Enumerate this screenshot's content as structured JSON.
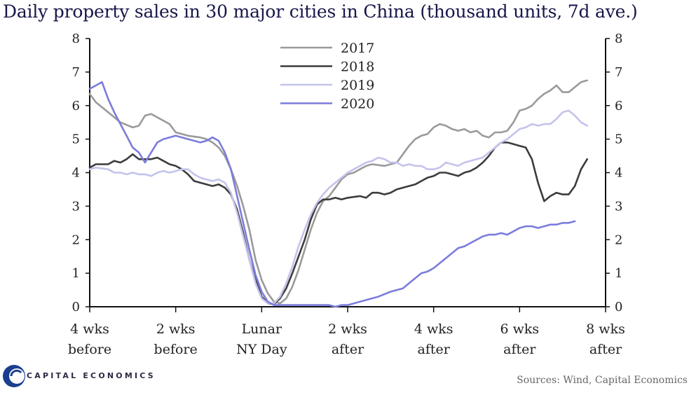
{
  "chart_data": {
    "type": "line",
    "title": "Daily property sales in 30 major cities in China (thousand units, 7d ave.)",
    "ylim": [
      0,
      8
    ],
    "yticks": [
      "0",
      "1",
      "2",
      "3",
      "4",
      "5",
      "6",
      "7",
      "8"
    ],
    "xlim": [
      -28,
      56
    ],
    "xticks": [
      {
        "x": -28,
        "line1": "4 wks",
        "line2": "before"
      },
      {
        "x": -14,
        "line1": "2 wks",
        "line2": "before"
      },
      {
        "x": 0,
        "line1": "Lunar",
        "line2": "NY Day"
      },
      {
        "x": 14,
        "line1": "2 wks",
        "line2": "after"
      },
      {
        "x": 28,
        "line1": "4 wks",
        "line2": "after"
      },
      {
        "x": 42,
        "line1": "6 wks",
        "line2": "after"
      },
      {
        "x": 56,
        "line1": "8 wks",
        "line2": "after"
      }
    ],
    "grid": false,
    "legend_position": "top-center",
    "series": [
      {
        "name": "2017",
        "color": "#9a9a9a",
        "points": [
          [
            -28,
            6.35
          ],
          [
            -27,
            6.1
          ],
          [
            -25,
            5.8
          ],
          [
            -23,
            5.5
          ],
          [
            -21,
            5.35
          ],
          [
            -20,
            5.4
          ],
          [
            -19,
            5.7
          ],
          [
            -18,
            5.75
          ],
          [
            -17,
            5.65
          ],
          [
            -15,
            5.45
          ],
          [
            -14,
            5.2
          ],
          [
            -12,
            5.1
          ],
          [
            -10,
            5.05
          ],
          [
            -9,
            5.0
          ],
          [
            -8,
            4.9
          ],
          [
            -7,
            4.75
          ],
          [
            -6,
            4.5
          ],
          [
            -5,
            4.1
          ],
          [
            -4,
            3.6
          ],
          [
            -3,
            3.0
          ],
          [
            -2,
            2.3
          ],
          [
            -1,
            1.4
          ],
          [
            0,
            0.8
          ],
          [
            1,
            0.4
          ],
          [
            2,
            0.15
          ],
          [
            3,
            0.1
          ],
          [
            4,
            0.25
          ],
          [
            5,
            0.6
          ],
          [
            6,
            1.1
          ],
          [
            7,
            1.7
          ],
          [
            8,
            2.3
          ],
          [
            9,
            2.8
          ],
          [
            10,
            3.15
          ],
          [
            11,
            3.3
          ],
          [
            12,
            3.55
          ],
          [
            13,
            3.8
          ],
          [
            14,
            3.95
          ],
          [
            15,
            4.0
          ],
          [
            16,
            4.1
          ],
          [
            17,
            4.2
          ],
          [
            18,
            4.25
          ],
          [
            20,
            4.2
          ],
          [
            22,
            4.3
          ],
          [
            23,
            4.55
          ],
          [
            24,
            4.8
          ],
          [
            25,
            5.0
          ],
          [
            26,
            5.1
          ],
          [
            27,
            5.15
          ],
          [
            28,
            5.35
          ],
          [
            29,
            5.45
          ],
          [
            30,
            5.4
          ],
          [
            31,
            5.3
          ],
          [
            32,
            5.25
          ],
          [
            33,
            5.3
          ],
          [
            34,
            5.2
          ],
          [
            35,
            5.25
          ],
          [
            36,
            5.1
          ],
          [
            37,
            5.05
          ],
          [
            38,
            5.2
          ],
          [
            39,
            5.2
          ],
          [
            40,
            5.25
          ],
          [
            41,
            5.5
          ],
          [
            42,
            5.85
          ],
          [
            43,
            5.9
          ],
          [
            44,
            6.0
          ],
          [
            45,
            6.2
          ],
          [
            46,
            6.35
          ],
          [
            47,
            6.45
          ],
          [
            48,
            6.6
          ],
          [
            49,
            6.4
          ],
          [
            50,
            6.4
          ],
          [
            51,
            6.55
          ],
          [
            52,
            6.7
          ],
          [
            53,
            6.75
          ]
        ]
      },
      {
        "name": "2018",
        "color": "#3c3c3c",
        "points": [
          [
            -28,
            4.15
          ],
          [
            -27,
            4.25
          ],
          [
            -25,
            4.25
          ],
          [
            -24,
            4.35
          ],
          [
            -23,
            4.3
          ],
          [
            -22,
            4.4
          ],
          [
            -21,
            4.55
          ],
          [
            -20,
            4.4
          ],
          [
            -19,
            4.4
          ],
          [
            -18,
            4.4
          ],
          [
            -17,
            4.45
          ],
          [
            -16,
            4.35
          ],
          [
            -15,
            4.25
          ],
          [
            -14,
            4.2
          ],
          [
            -13,
            4.1
          ],
          [
            -12,
            3.95
          ],
          [
            -11,
            3.75
          ],
          [
            -10,
            3.7
          ],
          [
            -9,
            3.65
          ],
          [
            -8,
            3.6
          ],
          [
            -7,
            3.65
          ],
          [
            -6,
            3.55
          ],
          [
            -5,
            3.35
          ],
          [
            -4,
            2.9
          ],
          [
            -3,
            2.2
          ],
          [
            -2,
            1.4
          ],
          [
            -1,
            0.8
          ],
          [
            0,
            0.3
          ],
          [
            1,
            0.1
          ],
          [
            2,
            0.08
          ],
          [
            3,
            0.25
          ],
          [
            4,
            0.55
          ],
          [
            5,
            1.0
          ],
          [
            6,
            1.5
          ],
          [
            7,
            2.0
          ],
          [
            8,
            2.6
          ],
          [
            9,
            3.05
          ],
          [
            10,
            3.2
          ],
          [
            11,
            3.2
          ],
          [
            12,
            3.25
          ],
          [
            13,
            3.2
          ],
          [
            14,
            3.25
          ],
          [
            16,
            3.3
          ],
          [
            17,
            3.25
          ],
          [
            18,
            3.4
          ],
          [
            19,
            3.4
          ],
          [
            20,
            3.35
          ],
          [
            21,
            3.4
          ],
          [
            22,
            3.5
          ],
          [
            23,
            3.55
          ],
          [
            24,
            3.6
          ],
          [
            25,
            3.65
          ],
          [
            26,
            3.75
          ],
          [
            27,
            3.85
          ],
          [
            28,
            3.9
          ],
          [
            29,
            4.0
          ],
          [
            30,
            4.0
          ],
          [
            31,
            3.95
          ],
          [
            32,
            3.9
          ],
          [
            33,
            4.0
          ],
          [
            34,
            4.05
          ],
          [
            35,
            4.15
          ],
          [
            36,
            4.3
          ],
          [
            37,
            4.5
          ],
          [
            38,
            4.75
          ],
          [
            39,
            4.9
          ],
          [
            40,
            4.9
          ],
          [
            41,
            4.85
          ],
          [
            42,
            4.8
          ],
          [
            43,
            4.75
          ],
          [
            44,
            4.4
          ],
          [
            45,
            3.7
          ],
          [
            46,
            3.15
          ],
          [
            47,
            3.3
          ],
          [
            48,
            3.4
          ],
          [
            49,
            3.35
          ],
          [
            50,
            3.35
          ],
          [
            51,
            3.6
          ],
          [
            52,
            4.1
          ],
          [
            53,
            4.4
          ]
        ]
      },
      {
        "name": "2019",
        "color": "#c3c3ec",
        "points": [
          [
            -28,
            4.1
          ],
          [
            -27,
            4.15
          ],
          [
            -25,
            4.1
          ],
          [
            -24,
            4.0
          ],
          [
            -23,
            4.0
          ],
          [
            -22,
            3.95
          ],
          [
            -21,
            4.0
          ],
          [
            -20,
            3.95
          ],
          [
            -19,
            3.95
          ],
          [
            -18,
            3.9
          ],
          [
            -17,
            4.0
          ],
          [
            -16,
            4.05
          ],
          [
            -15,
            4.0
          ],
          [
            -14,
            4.05
          ],
          [
            -13,
            4.1
          ],
          [
            -12,
            4.1
          ],
          [
            -11,
            3.95
          ],
          [
            -10,
            3.85
          ],
          [
            -9,
            3.8
          ],
          [
            -8,
            3.75
          ],
          [
            -7,
            3.8
          ],
          [
            -6,
            3.7
          ],
          [
            -5,
            3.4
          ],
          [
            -4,
            2.8
          ],
          [
            -3,
            2.1
          ],
          [
            -2,
            1.4
          ],
          [
            -1,
            0.7
          ],
          [
            0,
            0.25
          ],
          [
            1,
            0.1
          ],
          [
            2,
            0.1
          ],
          [
            3,
            0.3
          ],
          [
            4,
            0.7
          ],
          [
            5,
            1.2
          ],
          [
            6,
            1.8
          ],
          [
            7,
            2.3
          ],
          [
            8,
            2.75
          ],
          [
            9,
            3.1
          ],
          [
            10,
            3.35
          ],
          [
            11,
            3.55
          ],
          [
            12,
            3.7
          ],
          [
            13,
            3.85
          ],
          [
            14,
            4.0
          ],
          [
            15,
            4.1
          ],
          [
            16,
            4.2
          ],
          [
            17,
            4.3
          ],
          [
            18,
            4.35
          ],
          [
            19,
            4.45
          ],
          [
            20,
            4.4
          ],
          [
            21,
            4.3
          ],
          [
            22,
            4.3
          ],
          [
            23,
            4.2
          ],
          [
            24,
            4.25
          ],
          [
            25,
            4.2
          ],
          [
            26,
            4.2
          ],
          [
            27,
            4.1
          ],
          [
            28,
            4.1
          ],
          [
            29,
            4.15
          ],
          [
            30,
            4.3
          ],
          [
            31,
            4.25
          ],
          [
            32,
            4.2
          ],
          [
            33,
            4.3
          ],
          [
            34,
            4.35
          ],
          [
            35,
            4.4
          ],
          [
            36,
            4.45
          ],
          [
            37,
            4.6
          ],
          [
            38,
            4.75
          ],
          [
            39,
            4.9
          ],
          [
            40,
            5.0
          ],
          [
            41,
            5.15
          ],
          [
            42,
            5.3
          ],
          [
            43,
            5.35
          ],
          [
            44,
            5.45
          ],
          [
            45,
            5.4
          ],
          [
            46,
            5.45
          ],
          [
            47,
            5.45
          ],
          [
            48,
            5.6
          ],
          [
            49,
            5.8
          ],
          [
            50,
            5.85
          ],
          [
            51,
            5.7
          ],
          [
            52,
            5.5
          ],
          [
            53,
            5.4
          ]
        ]
      },
      {
        "name": "2020",
        "color": "#7c7cdc",
        "points": [
          [
            -28,
            6.5
          ],
          [
            -27,
            6.6
          ],
          [
            -26,
            6.7
          ],
          [
            -25,
            6.2
          ],
          [
            -24,
            5.8
          ],
          [
            -23,
            5.45
          ],
          [
            -22,
            5.1
          ],
          [
            -21,
            4.75
          ],
          [
            -20,
            4.6
          ],
          [
            -19,
            4.3
          ],
          [
            -18,
            4.6
          ],
          [
            -17,
            4.9
          ],
          [
            -16,
            5.0
          ],
          [
            -15,
            5.05
          ],
          [
            -14,
            5.1
          ],
          [
            -13,
            5.05
          ],
          [
            -12,
            5.0
          ],
          [
            -11,
            4.95
          ],
          [
            -10,
            4.9
          ],
          [
            -9,
            4.95
          ],
          [
            -8,
            5.05
          ],
          [
            -7,
            4.95
          ],
          [
            -6,
            4.6
          ],
          [
            -5,
            4.1
          ],
          [
            -4,
            3.3
          ],
          [
            -3,
            2.5
          ],
          [
            -2,
            1.7
          ],
          [
            -1,
            0.95
          ],
          [
            0,
            0.45
          ],
          [
            1,
            0.15
          ],
          [
            2,
            0.05
          ],
          [
            3,
            0.05
          ],
          [
            5,
            0.05
          ],
          [
            7,
            0.05
          ],
          [
            9,
            0.05
          ],
          [
            11,
            0.05
          ],
          [
            12,
            0.0
          ],
          [
            13,
            0.05
          ],
          [
            14,
            0.05
          ],
          [
            15,
            0.1
          ],
          [
            17,
            0.2
          ],
          [
            19,
            0.3
          ],
          [
            21,
            0.45
          ],
          [
            22,
            0.5
          ],
          [
            23,
            0.55
          ],
          [
            24,
            0.7
          ],
          [
            25,
            0.85
          ],
          [
            26,
            1.0
          ],
          [
            27,
            1.05
          ],
          [
            28,
            1.15
          ],
          [
            29,
            1.3
          ],
          [
            30,
            1.45
          ],
          [
            31,
            1.6
          ],
          [
            32,
            1.75
          ],
          [
            33,
            1.8
          ],
          [
            34,
            1.9
          ],
          [
            35,
            2.0
          ],
          [
            36,
            2.1
          ],
          [
            37,
            2.15
          ],
          [
            38,
            2.15
          ],
          [
            39,
            2.2
          ],
          [
            40,
            2.15
          ],
          [
            41,
            2.25
          ],
          [
            42,
            2.35
          ],
          [
            43,
            2.4
          ],
          [
            44,
            2.4
          ],
          [
            45,
            2.35
          ],
          [
            46,
            2.4
          ],
          [
            47,
            2.45
          ],
          [
            48,
            2.45
          ],
          [
            49,
            2.5
          ],
          [
            50,
            2.5
          ],
          [
            51,
            2.55
          ]
        ]
      }
    ]
  },
  "footer": {
    "brand": "CAPITAL ECONOMICS",
    "source": "Sources: Wind, Capital Economics"
  },
  "colors": {
    "brand_blue": "#1b3f8f",
    "title": "#16164a"
  },
  "icons": {
    "logo": "capital-economics-logo"
  }
}
